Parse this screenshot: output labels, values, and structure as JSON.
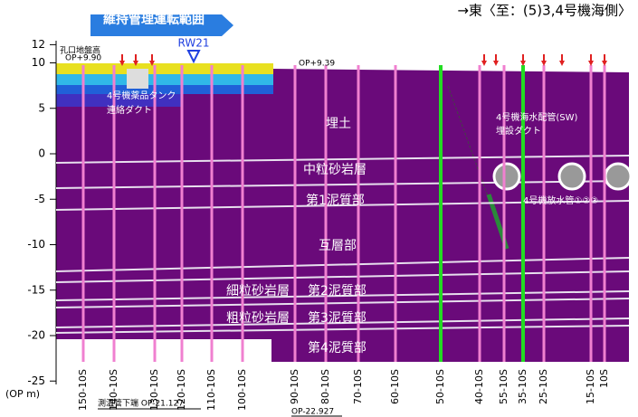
{
  "header": {
    "title": "維持管理運転範囲",
    "direction": "→東〈至：(5)3,4号機海側〉"
  },
  "axis": {
    "unit": "(OP m)",
    "ticks": [
      12,
      10,
      5,
      0,
      -5,
      -10,
      -15,
      -20,
      -25
    ]
  },
  "labels": [
    {
      "lines": [
        "孔口地盤高",
        "OP+9.90"
      ]
    },
    {
      "lines": [
        "RW21"
      ]
    },
    {
      "lines": [
        "OP+9.39"
      ]
    },
    {
      "lines": [
        "4号機薬品タンク",
        "連絡ダクト"
      ]
    },
    {
      "lines": [
        "埋土"
      ]
    },
    {
      "lines": [
        "4号機海水配管(SW)",
        "埋設ダクト"
      ]
    },
    {
      "lines": [
        "中粒砂岩層"
      ]
    },
    {
      "lines": [
        "第1泥質部"
      ]
    },
    {
      "lines": [
        "4号機放水管①②③"
      ]
    },
    {
      "lines": [
        "互層部"
      ]
    },
    {
      "lines": [
        "細粒砂岩層"
      ]
    },
    {
      "lines": [
        "第2泥質部"
      ]
    },
    {
      "lines": [
        "粗粒砂岩層"
      ]
    },
    {
      "lines": [
        "第3泥質部"
      ]
    },
    {
      "lines": [
        "第4泥質部"
      ]
    },
    {
      "lines": [
        "測温管下端 OP-21.127"
      ]
    },
    {
      "lines": [
        "OP-22.927"
      ]
    }
  ],
  "wells": [
    "150-10S",
    "140-10S",
    "130-10S",
    "120-10S",
    "110-10S",
    "100-10S",
    "90-10S",
    "80-10S",
    "70-10S",
    "60-10S",
    "50-10S",
    "40-10S",
    "55-10S",
    "35-10S",
    "25-10S",
    "15-10S",
    "10S"
  ]
}
